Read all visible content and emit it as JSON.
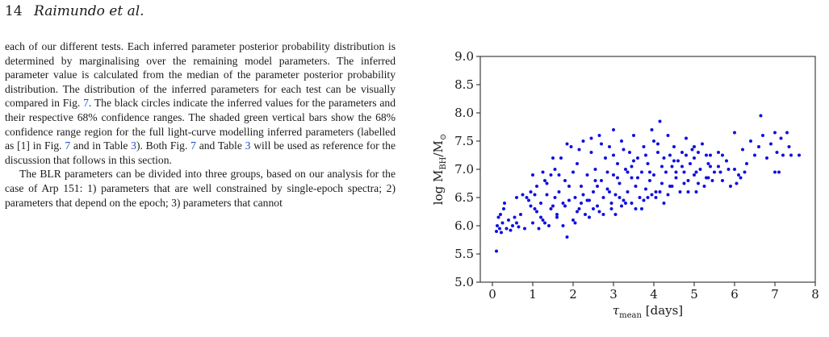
{
  "header": {
    "page_number": "14",
    "authors": "Raimundo et al."
  },
  "body_text": {
    "p1_a": "each of our different tests. Each inferred parameter posterior probability distribution is determined by marginalising over the remaining model parameters. The inferred parameter value is calculated from the median of the parameter posterior probability distribution. The distribution of the inferred parameters for each test can be visually compared in Fig. ",
    "p1_ref1": "7",
    "p1_b": ". The black circles indicate the inferred values for the parameters and their respective 68% confidence ranges. The shaded green vertical bars show the 68% confidence range region for the full light-curve modelling inferred parameters (labelled as [1] in Fig. ",
    "p1_ref2": "7",
    "p1_c": " and in Table ",
    "p1_ref3": "3",
    "p1_d": "). Both Fig. ",
    "p1_ref4": "7",
    "p1_e": " and Table ",
    "p1_ref5": "3",
    "p1_f": " will be used as reference for the discussion that follows in this section.",
    "p2": "The BLR parameters can be divided into three groups, based on our analysis for the case of Arp 151: 1) parameters that are well constrained by single-epoch spectra; 2) parameters that depend on the epoch; 3) parameters that cannot"
  },
  "chart_data": {
    "type": "scatter",
    "xlabel_symbol": "τ",
    "xlabel_sub": "mean",
    "xlabel_unit": "[days]",
    "ylabel_prefix": "log M",
    "ylabel_sub": "BH",
    "ylabel_mid": "/M",
    "ylabel_sun": "⊙",
    "xlim": [
      -0.3,
      8
    ],
    "ylim": [
      5.0,
      9.0
    ],
    "xticks": [
      "0",
      "1",
      "2",
      "3",
      "4",
      "5",
      "6",
      "7",
      "8"
    ],
    "yticks": [
      "5.0",
      "5.5",
      "6.0",
      "6.5",
      "7.0",
      "7.5",
      "8.0",
      "8.5",
      "9.0"
    ],
    "xtick_values": [
      0,
      1,
      2,
      3,
      4,
      5,
      6,
      7,
      8
    ],
    "ytick_values": [
      5.0,
      5.5,
      6.0,
      6.5,
      7.0,
      7.5,
      8.0,
      8.5,
      9.0
    ],
    "marker_color": "#1010e0",
    "grid": false,
    "points": [
      [
        0.1,
        5.55
      ],
      [
        0.1,
        5.9
      ],
      [
        0.12,
        6.0
      ],
      [
        0.15,
        6.15
      ],
      [
        0.18,
        5.95
      ],
      [
        0.2,
        6.2
      ],
      [
        0.22,
        5.88
      ],
      [
        0.25,
        6.05
      ],
      [
        0.28,
        6.3
      ],
      [
        0.3,
        6.4
      ],
      [
        0.35,
        5.95
      ],
      [
        0.4,
        6.1
      ],
      [
        0.45,
        5.92
      ],
      [
        0.5,
        6.0
      ],
      [
        0.55,
        6.15
      ],
      [
        0.6,
        6.05
      ],
      [
        0.65,
        5.98
      ],
      [
        0.7,
        6.2
      ],
      [
        0.8,
        5.95
      ],
      [
        0.85,
        6.5
      ],
      [
        0.9,
        6.45
      ],
      [
        0.95,
        6.6
      ],
      [
        1.0,
        6.05
      ],
      [
        1.0,
        6.9
      ],
      [
        1.05,
        6.3
      ],
      [
        1.1,
        6.7
      ],
      [
        1.15,
        5.95
      ],
      [
        1.2,
        6.4
      ],
      [
        1.25,
        6.1
      ],
      [
        1.3,
        6.8
      ],
      [
        1.35,
        6.55
      ],
      [
        1.4,
        6.0
      ],
      [
        1.45,
        6.9
      ],
      [
        1.5,
        6.35
      ],
      [
        1.55,
        7.0
      ],
      [
        1.6,
        6.2
      ],
      [
        1.65,
        6.6
      ],
      [
        1.7,
        7.2
      ],
      [
        1.75,
        6.4
      ],
      [
        1.8,
        6.8
      ],
      [
        1.85,
        5.8
      ],
      [
        1.9,
        6.45
      ],
      [
        1.95,
        7.4
      ],
      [
        2.0,
        6.1
      ],
      [
        2.0,
        6.95
      ],
      [
        2.05,
        6.5
      ],
      [
        2.1,
        7.1
      ],
      [
        2.15,
        6.3
      ],
      [
        2.2,
        6.7
      ],
      [
        2.25,
        7.5
      ],
      [
        2.3,
        6.2
      ],
      [
        2.35,
        6.9
      ],
      [
        2.4,
        6.45
      ],
      [
        2.45,
        7.3
      ],
      [
        2.5,
        6.6
      ],
      [
        2.55,
        7.0
      ],
      [
        2.6,
        6.35
      ],
      [
        2.65,
        7.6
      ],
      [
        2.7,
        6.8
      ],
      [
        2.75,
        6.5
      ],
      [
        2.8,
        7.2
      ],
      [
        2.85,
        6.65
      ],
      [
        2.9,
        7.4
      ],
      [
        2.95,
        6.4
      ],
      [
        3.0,
        6.9
      ],
      [
        3.0,
        7.7
      ],
      [
        3.05,
        6.55
      ],
      [
        3.1,
        7.1
      ],
      [
        3.15,
        6.75
      ],
      [
        3.2,
        7.5
      ],
      [
        3.25,
        6.45
      ],
      [
        3.3,
        7.0
      ],
      [
        3.35,
        6.6
      ],
      [
        3.4,
        7.3
      ],
      [
        3.45,
        6.85
      ],
      [
        3.5,
        7.6
      ],
      [
        3.55,
        6.7
      ],
      [
        3.6,
        7.2
      ],
      [
        3.65,
        6.5
      ],
      [
        3.7,
        6.95
      ],
      [
        3.75,
        7.4
      ],
      [
        3.8,
        6.65
      ],
      [
        3.85,
        7.1
      ],
      [
        3.9,
        6.8
      ],
      [
        3.95,
        7.7
      ],
      [
        4.0,
        6.9
      ],
      [
        4.0,
        7.5
      ],
      [
        4.05,
        6.6
      ],
      [
        4.1,
        7.3
      ],
      [
        4.15,
        7.85
      ],
      [
        4.2,
        6.75
      ],
      [
        4.25,
        7.2
      ],
      [
        4.3,
        6.95
      ],
      [
        4.35,
        7.6
      ],
      [
        4.4,
        6.7
      ],
      [
        4.45,
        7.05
      ],
      [
        4.5,
        7.4
      ],
      [
        4.55,
        6.85
      ],
      [
        4.6,
        7.15
      ],
      [
        4.65,
        6.6
      ],
      [
        4.7,
        7.3
      ],
      [
        4.75,
        6.95
      ],
      [
        4.8,
        7.55
      ],
      [
        4.85,
        6.8
      ],
      [
        4.9,
        7.1
      ],
      [
        4.95,
        7.35
      ],
      [
        5.0,
        6.9
      ],
      [
        5.0,
        7.2
      ],
      [
        5.1,
        6.75
      ],
      [
        5.15,
        7.0
      ],
      [
        5.2,
        7.45
      ],
      [
        5.3,
        6.85
      ],
      [
        5.35,
        7.1
      ],
      [
        5.4,
        7.25
      ],
      [
        5.5,
        6.95
      ],
      [
        5.6,
        7.05
      ],
      [
        5.7,
        6.8
      ],
      [
        5.8,
        7.15
      ],
      [
        5.9,
        6.7
      ],
      [
        6.0,
        7.0
      ],
      [
        6.0,
        7.65
      ],
      [
        6.1,
        6.9
      ],
      [
        6.2,
        7.35
      ],
      [
        6.3,
        7.1
      ],
      [
        6.4,
        7.5
      ],
      [
        6.5,
        7.25
      ],
      [
        6.6,
        7.4
      ],
      [
        6.65,
        7.95
      ],
      [
        6.7,
        7.6
      ],
      [
        6.8,
        7.2
      ],
      [
        6.9,
        7.45
      ],
      [
        7.0,
        6.95
      ],
      [
        7.0,
        7.65
      ],
      [
        7.05,
        7.3
      ],
      [
        7.1,
        6.95
      ],
      [
        7.15,
        7.55
      ],
      [
        7.2,
        7.25
      ],
      [
        7.3,
        7.65
      ],
      [
        7.35,
        7.4
      ],
      [
        7.4,
        7.25
      ],
      [
        7.6,
        7.25
      ],
      [
        0.95,
        6.35
      ],
      [
        1.2,
        6.15
      ],
      [
        1.45,
        6.3
      ],
      [
        1.75,
        6.0
      ],
      [
        2.1,
        6.25
      ],
      [
        2.4,
        6.15
      ],
      [
        2.65,
        6.25
      ],
      [
        2.95,
        6.3
      ],
      [
        3.2,
        6.35
      ],
      [
        3.45,
        6.4
      ],
      [
        3.75,
        6.45
      ],
      [
        4.05,
        6.5
      ],
      [
        4.35,
        6.55
      ],
      [
        1.65,
        6.9
      ],
      [
        2.25,
        6.55
      ],
      [
        2.55,
        6.8
      ],
      [
        2.85,
        6.95
      ],
      [
        3.15,
        6.5
      ],
      [
        3.45,
        7.05
      ],
      [
        3.7,
        6.3
      ],
      [
        3.95,
        6.55
      ],
      [
        4.25,
        6.4
      ],
      [
        4.55,
        6.95
      ],
      [
        4.85,
        6.6
      ],
      [
        5.05,
        6.95
      ],
      [
        5.25,
        6.7
      ],
      [
        5.45,
        6.8
      ],
      [
        5.65,
        6.95
      ],
      [
        5.85,
        7.0
      ],
      [
        6.05,
        6.75
      ],
      [
        6.25,
        6.95
      ],
      [
        1.05,
        6.55
      ],
      [
        1.35,
        6.75
      ],
      [
        1.55,
        6.5
      ],
      [
        1.9,
        6.7
      ],
      [
        2.2,
        6.4
      ],
      [
        2.5,
        6.3
      ],
      [
        2.75,
        6.2
      ],
      [
        3.05,
        6.2
      ],
      [
        3.3,
        6.4
      ],
      [
        3.55,
        6.3
      ],
      [
        3.85,
        6.5
      ],
      [
        4.15,
        6.6
      ],
      [
        4.45,
        6.7
      ],
      [
        4.75,
        6.75
      ],
      [
        5.05,
        6.6
      ],
      [
        5.35,
        6.85
      ],
      [
        0.6,
        6.5
      ],
      [
        0.75,
        6.55
      ],
      [
        1.1,
        6.25
      ],
      [
        1.3,
        6.05
      ],
      [
        1.6,
        6.15
      ],
      [
        1.8,
        6.35
      ],
      [
        2.05,
        6.05
      ],
      [
        2.35,
        6.45
      ],
      [
        2.6,
        6.7
      ],
      [
        2.9,
        6.6
      ],
      [
        3.1,
        6.85
      ],
      [
        3.35,
        6.95
      ],
      [
        3.6,
        6.85
      ],
      [
        3.9,
        6.95
      ],
      [
        4.2,
        7.05
      ],
      [
        4.5,
        7.15
      ],
      [
        4.8,
        7.25
      ],
      [
        5.1,
        7.3
      ],
      [
        5.4,
        7.05
      ],
      [
        5.7,
        7.25
      ],
      [
        6.15,
        6.85
      ],
      [
        1.25,
        6.95
      ],
      [
        1.5,
        7.2
      ],
      [
        1.85,
        7.45
      ],
      [
        2.15,
        7.35
      ],
      [
        2.45,
        7.55
      ],
      [
        2.7,
        7.45
      ],
      [
        3.0,
        7.25
      ],
      [
        3.25,
        7.35
      ],
      [
        3.5,
        7.15
      ],
      [
        3.8,
        7.25
      ],
      [
        4.1,
        7.45
      ],
      [
        4.4,
        7.25
      ],
      [
        4.7,
        7.05
      ],
      [
        5.0,
        7.4
      ],
      [
        5.3,
        7.25
      ],
      [
        5.6,
        7.3
      ]
    ]
  }
}
